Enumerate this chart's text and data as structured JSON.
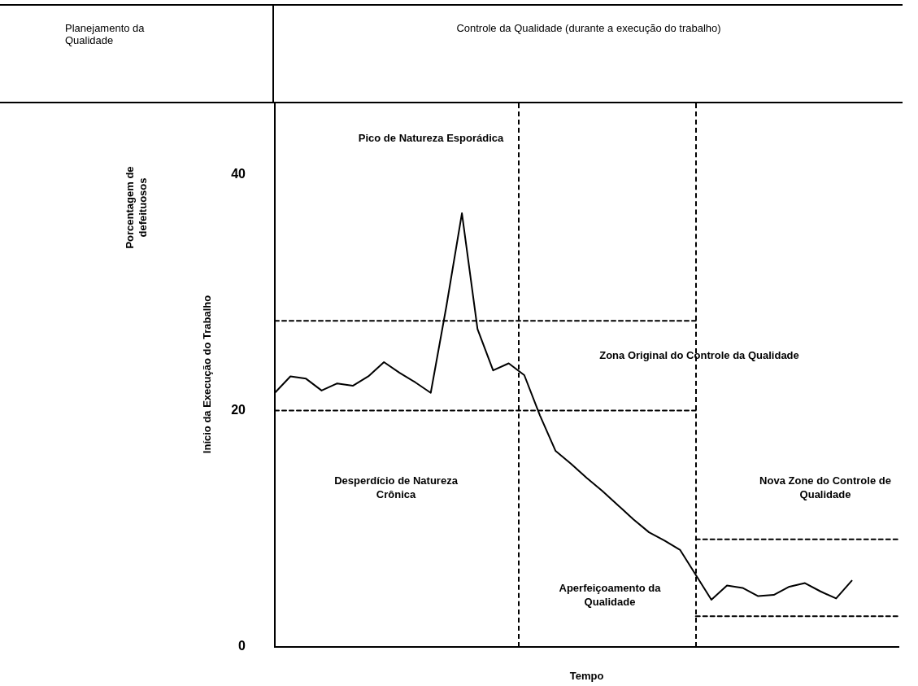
{
  "chart_data": {
    "type": "line",
    "xlabel": "Tempo",
    "annotations": [
      "Planejamento da Qualidade",
      "Controle da Qualidade (durante a execução do trabalho)",
      "Início da Execução do Trabalho",
      "Porcentagem de defeituosos",
      "Pico de Natureza Esporádica",
      "Zona Original do Controle da Qualidade",
      "Desperdício de Natureza Crônica",
      "Nova Zone do Controle de Qualidade",
      "Aperfeiçoamento da Qualidade"
    ],
    "categories": [
      null,
      null,
      null,
      null,
      null,
      null,
      null,
      null,
      null,
      null,
      null,
      null,
      null,
      null,
      null,
      null,
      null,
      null,
      null,
      null,
      null,
      null,
      null,
      null,
      null,
      null,
      null,
      null,
      null,
      null,
      null,
      null,
      null,
      null,
      null,
      null,
      null,
      null,
      null,
      null,
      null
    ],
    "ylim": [
      0,
      46
    ],
    "yticks": [
      0,
      20,
      40
    ],
    "tick_labels": "y",
    "grid": false,
    "legend": false,
    "marker": "none",
    "series": [
      {
        "color": "#000000",
        "line_style": "solid",
        "values": [
          21.5,
          22.9,
          22.7,
          21.7,
          22.3,
          22.1,
          22.9,
          24.1,
          23.2,
          22.4,
          21.5,
          28.8,
          36.7,
          26.9,
          23.4,
          24.0,
          23.0,
          19.6,
          16.6,
          15.5,
          14.3,
          13.2,
          12.0,
          10.8,
          9.7,
          9.0,
          8.2,
          6.1,
          4.0,
          5.2,
          5.0,
          4.3,
          4.4,
          5.1,
          5.4,
          4.7,
          4.1,
          5.6,
          null,
          null,
          null
        ]
      },
      {
        "color": "#000000",
        "line_style": "dashed",
        "values": [
          27.6,
          27.6,
          27.6,
          27.6,
          27.6,
          27.6,
          27.6,
          27.6,
          27.6,
          27.6,
          27.6,
          27.6,
          27.6,
          27.6,
          27.6,
          27.6,
          27.6,
          27.6,
          27.6,
          27.6,
          27.6,
          27.6,
          27.6,
          27.6,
          27.6,
          27.6,
          27.6,
          27.6,
          null,
          null,
          null,
          null,
          null,
          null,
          null,
          null,
          null,
          null,
          null,
          null,
          null
        ]
      },
      {
        "color": "#000000",
        "line_style": "dashed",
        "values": [
          20,
          20,
          20,
          20,
          20,
          20,
          20,
          20,
          20,
          20,
          20,
          20,
          20,
          20,
          20,
          20,
          20,
          20,
          20,
          20,
          20,
          20,
          20,
          20,
          20,
          20,
          20,
          20,
          null,
          null,
          null,
          null,
          null,
          null,
          null,
          null,
          null,
          null,
          null,
          null,
          null
        ]
      },
      {
        "color": "#000000",
        "line_style": "dashed",
        "values": [
          null,
          null,
          null,
          null,
          null,
          null,
          null,
          null,
          null,
          null,
          null,
          null,
          null,
          null,
          null,
          null,
          null,
          null,
          null,
          null,
          null,
          null,
          null,
          null,
          null,
          null,
          null,
          9.1,
          9.1,
          9.1,
          9.1,
          9.1,
          9.1,
          9.1,
          9.1,
          9.1,
          9.1,
          9.1,
          9.1,
          9.1,
          9.1
        ]
      },
      {
        "color": "#000000",
        "line_style": "dashed",
        "values": [
          null,
          null,
          null,
          null,
          null,
          null,
          null,
          null,
          null,
          null,
          null,
          null,
          null,
          null,
          null,
          null,
          null,
          null,
          null,
          null,
          null,
          null,
          null,
          null,
          null,
          null,
          null,
          2.6,
          2.6,
          2.6,
          2.6,
          2.6,
          2.6,
          2.6,
          2.6,
          2.6,
          2.6,
          2.6,
          2.6,
          2.6,
          2.6
        ]
      }
    ]
  }
}
